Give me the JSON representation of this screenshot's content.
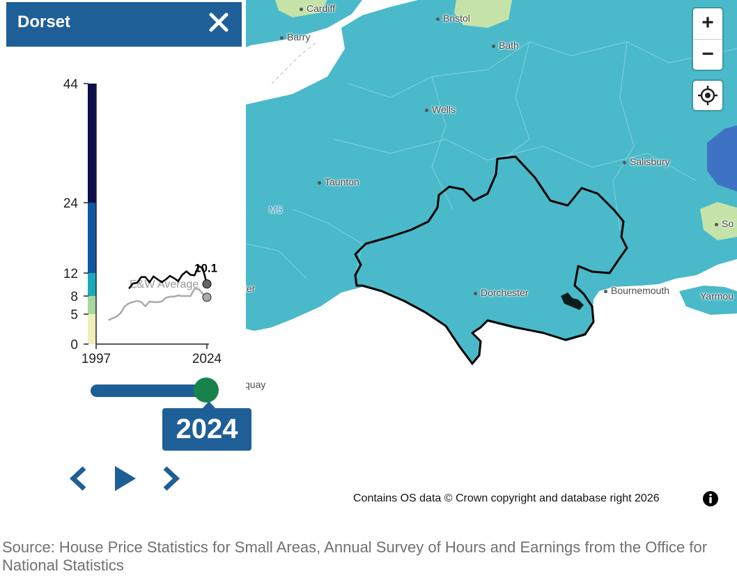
{
  "panel": {
    "area_name": "Dorset",
    "close_icon": "close-icon"
  },
  "chart": {
    "y_ticks": [
      "0",
      "5",
      "8",
      "12",
      "24",
      "44"
    ],
    "x_ticks": [
      "1997",
      "2024"
    ],
    "legend_colors": [
      "#efefb9",
      "#a7d79f",
      "#19a9bb",
      "#1155a6",
      "#0a0e4b"
    ],
    "average_label": "E&W Average",
    "current_value_label": "10.1"
  },
  "chart_data": {
    "type": "line",
    "x": [
      2000,
      2001,
      2002,
      2003,
      2004,
      2005,
      2006,
      2007,
      2008,
      2009,
      2010,
      2011,
      2012,
      2013,
      2014,
      2015,
      2016,
      2017,
      2018,
      2019,
      2020,
      2021,
      2022,
      2023,
      2024
    ],
    "series": [
      {
        "name": "Dorset",
        "values": [
          null,
          null,
          null,
          null,
          null,
          9.3,
          10.2,
          10.3,
          11.3,
          11.3,
          10.4,
          11.4,
          10.9,
          10.4,
          10.9,
          11.5,
          11.1,
          10.6,
          11.7,
          12.3,
          11.7,
          11.6,
          13.2,
          12.8,
          10.1
        ]
      },
      {
        "name": "E&W Average",
        "values": [
          4.0,
          4.3,
          4.6,
          5.2,
          6.3,
          6.8,
          7.0,
          7.2,
          7.0,
          6.3,
          7.1,
          7.0,
          7.0,
          7.1,
          7.7,
          7.9,
          7.9,
          8.1,
          8.0,
          8.0,
          8.0,
          9.3,
          9.2,
          8.4,
          7.8
        ]
      }
    ],
    "xlim": [
      1997,
      2024
    ],
    "ylim": [
      0,
      44
    ],
    "scale_breaks": [
      0,
      5,
      8,
      12,
      24,
      44
    ]
  },
  "timeline": {
    "current_year": "2024",
    "prev_icon": "chevron-left-icon",
    "play_icon": "play-icon",
    "next_icon": "chevron-right-icon"
  },
  "map": {
    "places": {
      "cardiff": "Cardiff",
      "bristol": "Bristol",
      "barry": "Barry",
      "bath": "Bath",
      "wells": "Wells",
      "salisbury": "Salisbury",
      "taunton": "Taunton",
      "m5": "M5",
      "dorchester": "Dorchester",
      "bournemouth": "Bournemouth",
      "yarmouth": "Yarmou",
      "southampton": "So",
      "exeter_fragment": "ter",
      "torquay_fragment": "quay"
    },
    "zoom_in_label": "+",
    "zoom_out_label": "−",
    "locate_icon": "crosshair-icon",
    "colors": {
      "land_main": "#4ab9c9",
      "land_high": "#3e73c3",
      "land_low": "#c5e3a8",
      "water": "#ffffff",
      "boundary": "#000000"
    }
  },
  "attribution": "Contains OS data © Crown copyright and database right 2026",
  "source": "Source: House Price Statistics for Small Areas, Annual Survey of Hours and Earnings from the Office for National Statistics"
}
